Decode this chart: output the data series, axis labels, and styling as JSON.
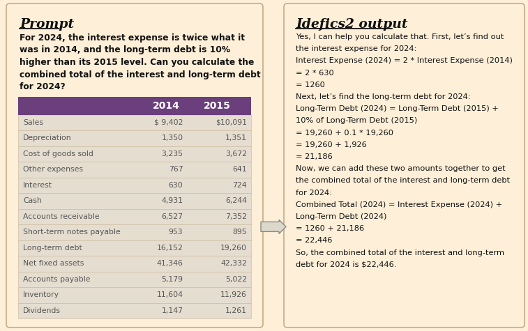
{
  "bg_color": "#fdefd8",
  "prompt_title": "Prompt",
  "output_title": "Idefics2 output",
  "prompt_text_lines": [
    "For 2024, the interest expense is twice what it",
    "was in 2014, and the long-term debt is 10%",
    "higher than its 2015 level. Can you calculate the",
    "combined total of the interest and long-term debt",
    "for 2024?"
  ],
  "table_header_bg": "#6b3f7c",
  "table_header_text_color": "#ffffff",
  "table_row_bg": "#e5ddd0",
  "table_row_text_color": "#555555",
  "table_col1_header": "2014",
  "table_col2_header": "2015",
  "table_rows": [
    [
      "Sales",
      "$ 9,402",
      "$10,091"
    ],
    [
      "Depreciation",
      "1,350",
      "1,351"
    ],
    [
      "Cost of goods sold",
      "3,235",
      "3,672"
    ],
    [
      "Other expenses",
      "767",
      "641"
    ],
    [
      "Interest",
      "630",
      "724"
    ],
    [
      "Cash",
      "4,931",
      "6,244"
    ],
    [
      "Accounts receivable",
      "6,527",
      "7,352"
    ],
    [
      "Short-term notes payable",
      "953",
      "895"
    ],
    [
      "Long-term debt",
      "16,152",
      "19,260"
    ],
    [
      "Net fixed assets",
      "41,346",
      "42,332"
    ],
    [
      "Accounts payable",
      "5,179",
      "5,022"
    ],
    [
      "Inventory",
      "11,604",
      "11,926"
    ],
    [
      "Dividends",
      "1,147",
      "1,261"
    ]
  ],
  "output_text_lines": [
    "Yes, I can help you calculate that. First, let’s find out",
    "the interest expense for 2024:",
    "Interest Expense (2024) = 2 * Interest Expense (2014)",
    "= 2 * 630",
    "= 1260",
    "Next, let’s find the long-term debt for 2024:",
    "Long-Term Debt (2024) = Long-Term Debt (2015) +",
    "10% of Long-Term Debt (2015)",
    "= 19,260 + 0.1 * 19,260",
    "= 19,260 + 1,926",
    "= 21,186",
    "Now, we can add these two amounts together to get",
    "the combined total of the interest and long-term debt",
    "for 2024:",
    "Combined Total (2024) = Interest Expense (2024) +",
    "Long-Term Debt (2024)",
    "= 1260 + 21,186",
    "= 22,446",
    "So, the combined total of the interest and long-term",
    "debt for 2024 is $22,446."
  ]
}
